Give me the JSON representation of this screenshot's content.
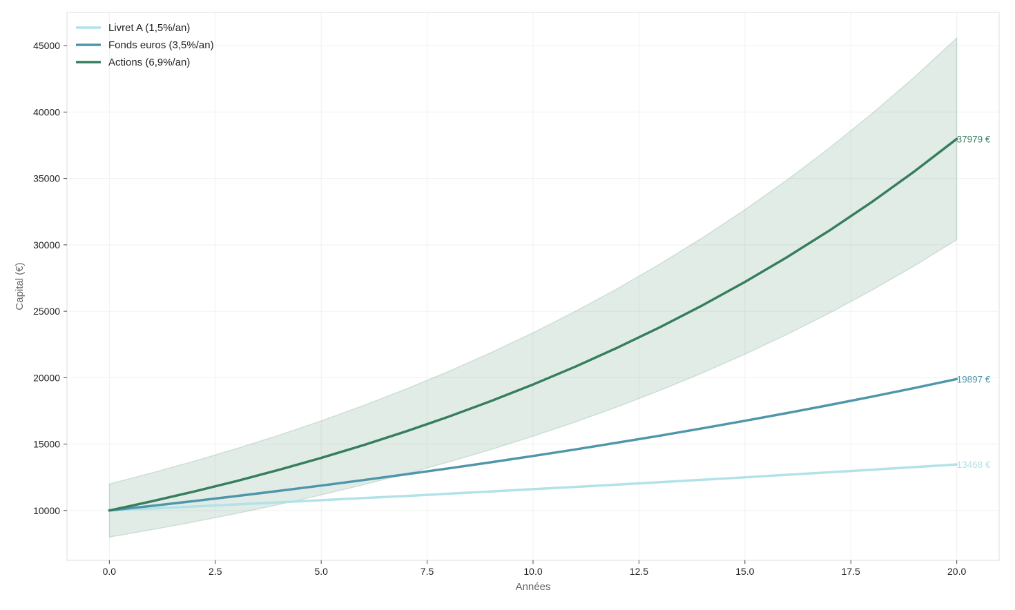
{
  "chart_data": {
    "type": "line",
    "title": "",
    "xlabel": "Années",
    "ylabel": "Capital (€)",
    "xlim": [
      -1,
      21
    ],
    "ylim": [
      6250,
      47500
    ],
    "xticks": [
      0,
      2.5,
      5,
      7.5,
      10,
      12.5,
      15,
      17.5,
      20
    ],
    "xtick_labels": [
      "0.0",
      "2.5",
      "5.0",
      "7.5",
      "10.0",
      "12.5",
      "15.0",
      "17.5",
      "20.0"
    ],
    "yticks": [
      10000,
      15000,
      20000,
      25000,
      30000,
      35000,
      40000,
      45000
    ],
    "ytick_labels": [
      "10000",
      "15000",
      "20000",
      "25000",
      "30000",
      "35000",
      "40000",
      "45000"
    ],
    "grid": true,
    "legend": "top-left",
    "x": [
      0,
      1,
      2,
      3,
      4,
      5,
      6,
      7,
      8,
      9,
      10,
      11,
      12,
      13,
      14,
      15,
      16,
      17,
      18,
      19,
      20
    ],
    "series": [
      {
        "name": "Livret A (1,5%/an)",
        "color": "#b2e2e8",
        "values": [
          10000,
          10150,
          10302,
          10457,
          10614,
          10773,
          10934,
          11098,
          11265,
          11434,
          11605,
          11779,
          11956,
          12136,
          12318,
          12502,
          12690,
          12880,
          13073,
          13270,
          13468
        ],
        "end_label": "13468 €"
      },
      {
        "name": "Fonds euros (3,5%/an)",
        "color": "#4f96ab",
        "values": [
          10000,
          10350,
          10712,
          11087,
          11475,
          11877,
          12293,
          12723,
          13168,
          13629,
          14106,
          14600,
          15111,
          15640,
          16187,
          16753,
          17340,
          17947,
          18575,
          19225,
          19897
        ],
        "end_label": "19897 €"
      },
      {
        "name": "Actions (6,9%/an)",
        "color": "#377e5d",
        "values": [
          10000,
          10690,
          11428,
          12216,
          13059,
          13960,
          14923,
          15953,
          17054,
          18230,
          19488,
          20833,
          22270,
          23807,
          25450,
          27206,
          29083,
          31090,
          33235,
          35528,
          37979
        ],
        "end_label": "37979 €",
        "band": {
          "color": "#377e5d",
          "upper": [
            12000,
            12828,
            13713,
            14660,
            15671,
            16752,
            17908,
            19144,
            20465,
            21876,
            23386,
            24999,
            26724,
            28568,
            30540,
            32647,
            34900,
            37308,
            39882,
            42634,
            45575
          ],
          "lower": [
            8000,
            8552,
            9142,
            9773,
            10447,
            11168,
            11939,
            12762,
            13643,
            14584,
            15590,
            16666,
            17816,
            19045,
            20360,
            21765,
            23266,
            24872,
            26588,
            28423,
            30383
          ]
        }
      }
    ]
  }
}
